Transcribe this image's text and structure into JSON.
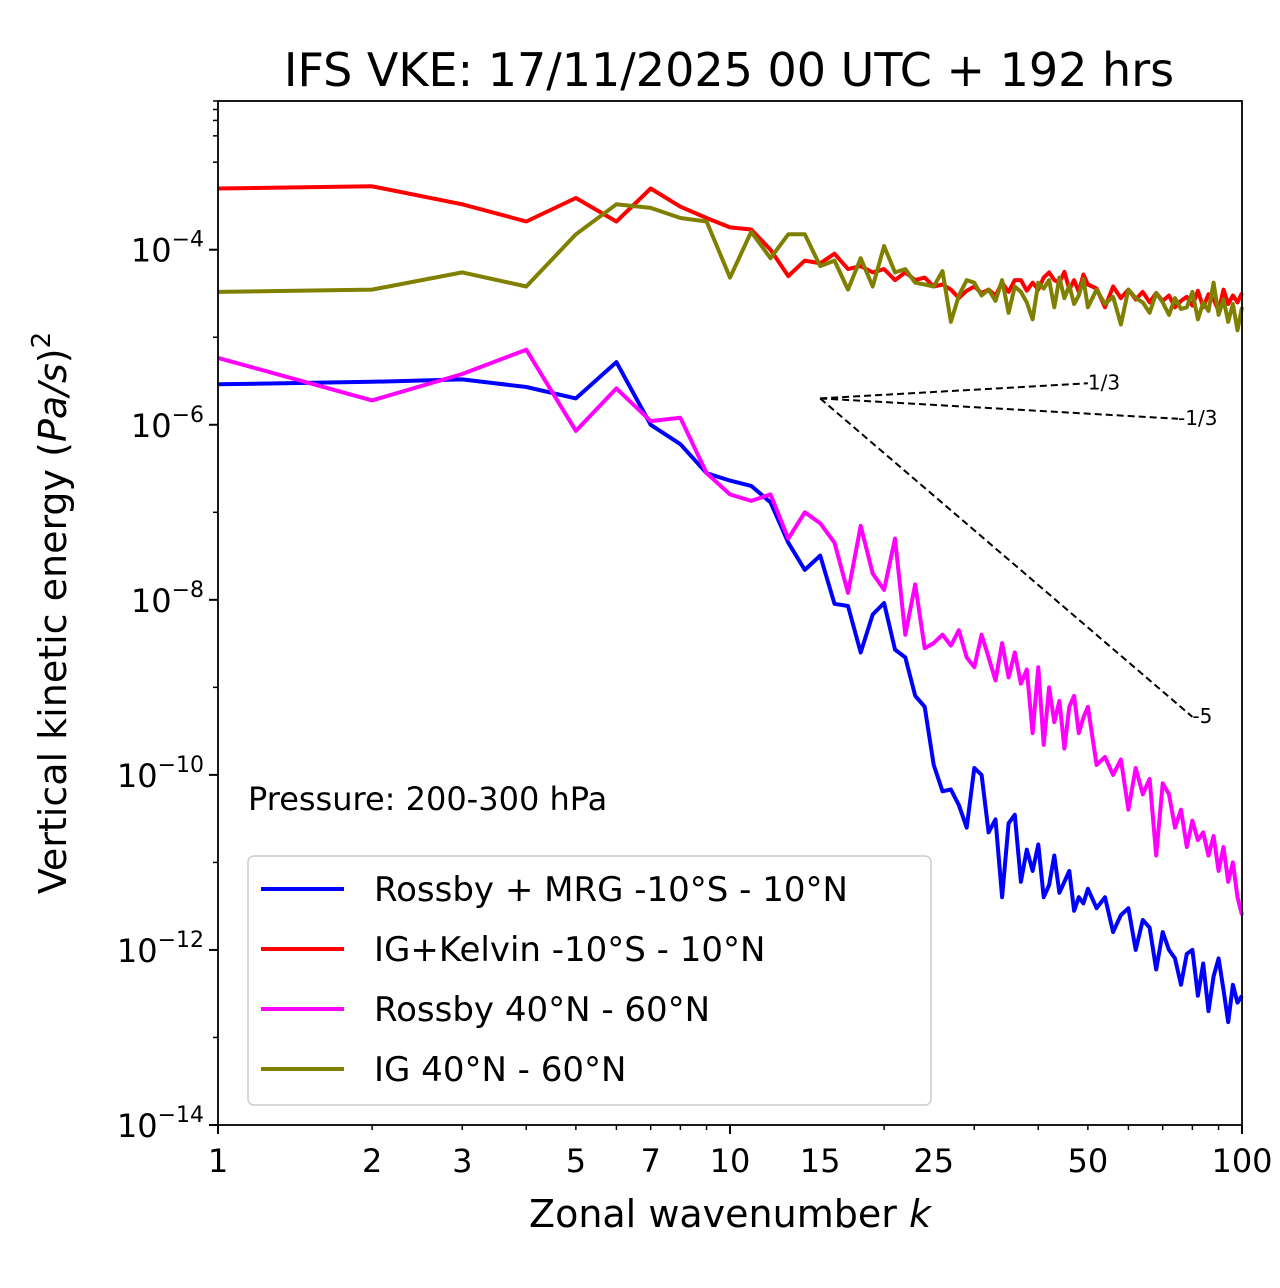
{
  "chart_data": {
    "type": "line",
    "title": "IFS VKE: 17/11/2025 00 UTC + 192 hrs",
    "xlabel_prefix": "Zonal wavenumber ",
    "xlabel_var": "k",
    "ylabel_prefix": "Vertical kinetic energy (",
    "ylabel_var": "Pa/s",
    "ylabel_suffix": ")",
    "ylabel_exponent": "2",
    "xscale": "log",
    "yscale": "log",
    "xlim": [
      1,
      100
    ],
    "ylim": [
      1e-14,
      0.005
    ],
    "x_ticks": [
      {
        "value": 1,
        "label": "1"
      },
      {
        "value": 2,
        "label": "2"
      },
      {
        "value": 3,
        "label": "3"
      },
      {
        "value": 5,
        "label": "5"
      },
      {
        "value": 7,
        "label": "7"
      },
      {
        "value": 10,
        "label": "10"
      },
      {
        "value": 15,
        "label": "15"
      },
      {
        "value": 25,
        "label": "25"
      },
      {
        "value": 50,
        "label": "50"
      },
      {
        "value": 100,
        "label": "100"
      }
    ],
    "y_ticks": [
      {
        "value": 1e-14,
        "base": "10",
        "exp": "−14"
      },
      {
        "value": 1e-12,
        "base": "10",
        "exp": "−12"
      },
      {
        "value": 1e-10,
        "base": "10",
        "exp": "−10"
      },
      {
        "value": 1e-08,
        "base": "10",
        "exp": "−8"
      },
      {
        "value": 1e-06,
        "base": "10",
        "exp": "−6"
      },
      {
        "value": 0.0001,
        "base": "10",
        "exp": "−4"
      }
    ],
    "annotation": "Pressure: 200-300 hPa",
    "legend_position": "lower-left",
    "reference_slopes": [
      {
        "label": "1/3",
        "x0": 15,
        "y0": 2e-06,
        "x1": 50,
        "y1": 2.98e-06
      },
      {
        "label": "-1/3",
        "x0": 15,
        "y0": 2e-06,
        "x1": 75,
        "y1": 1.17e-06
      },
      {
        "label": "-5",
        "x0": 15,
        "y0": 2e-06,
        "x1": 80,
        "y1": 4.6e-10
      }
    ],
    "series": [
      {
        "name": "Rossby + MRG -10°S - 10°N",
        "color": "#0000ff",
        "x": [
          1,
          2,
          3,
          4,
          5,
          6,
          7,
          8,
          9,
          10,
          11,
          12,
          13,
          14,
          15,
          16,
          17,
          18,
          19,
          20,
          21,
          22,
          23,
          24,
          25,
          26,
          27,
          28,
          29,
          30,
          31,
          32,
          33,
          34,
          35,
          36,
          37,
          38,
          39,
          40,
          41,
          42,
          43,
          44,
          45,
          46,
          47,
          48,
          49,
          50,
          52,
          54,
          56,
          58,
          60,
          62,
          64,
          66,
          68,
          70,
          72,
          74,
          76,
          78,
          80,
          82,
          84,
          86,
          88,
          90,
          92,
          94,
          96,
          98,
          100
        ],
        "y": [
          2.9e-06,
          3.1e-06,
          3.3e-06,
          2.7e-06,
          2e-06,
          5.2e-06,
          1e-06,
          6e-07,
          2.8e-07,
          2.3e-07,
          2e-07,
          1.3e-07,
          4.5e-08,
          2.2e-08,
          3.2e-08,
          9e-09,
          8.5e-09,
          2.5e-09,
          6.8e-09,
          9.2e-09,
          2.7e-09,
          2.2e-09,
          8e-10,
          6e-10,
          1.3e-10,
          6.5e-11,
          6.8e-11,
          4.5e-11,
          2.5e-11,
          1.2e-10,
          1e-10,
          2.2e-11,
          3.1e-11,
          4e-12,
          2.8e-11,
          3.5e-11,
          6e-12,
          1.4e-11,
          8e-12,
          1.6e-11,
          4e-12,
          5.5e-12,
          1.2e-11,
          4.5e-12,
          6e-12,
          8e-12,
          2.8e-12,
          4e-12,
          3.4e-12,
          5e-12,
          3e-12,
          4e-12,
          1.6e-12,
          2.5e-12,
          3e-12,
          1e-12,
          2.2e-12,
          1.8e-12,
          6e-13,
          1.6e-12,
          1e-12,
          8e-13,
          4e-13,
          9e-13,
          1e-12,
          3e-13,
          7e-13,
          2e-13,
          5e-13,
          8e-13,
          3.5e-13,
          1.5e-13,
          4e-13,
          2.5e-13,
          3e-13
        ]
      },
      {
        "name": "IG+Kelvin -10°S - 10°N",
        "color": "#ff0000",
        "x": [
          1,
          2,
          3,
          4,
          5,
          6,
          7,
          8,
          9,
          10,
          11,
          12,
          13,
          14,
          15,
          16,
          17,
          18,
          19,
          20,
          21,
          22,
          23,
          24,
          25,
          26,
          27,
          28,
          29,
          30,
          31,
          32,
          33,
          34,
          35,
          36,
          37,
          38,
          39,
          40,
          41,
          42,
          43,
          44,
          45,
          46,
          47,
          48,
          49,
          50,
          52,
          54,
          56,
          58,
          60,
          62,
          64,
          66,
          68,
          70,
          72,
          74,
          76,
          78,
          80,
          82,
          84,
          86,
          88,
          90,
          92,
          94,
          96,
          98,
          100
        ],
        "y": [
          0.0005,
          0.00053,
          0.00033,
          0.00021,
          0.00039,
          0.00021,
          0.0005,
          0.00031,
          0.00023,
          0.00018,
          0.00017,
          0.0001,
          5e-05,
          7.5e-05,
          7e-05,
          9e-05,
          6e-05,
          6.5e-05,
          5.5e-05,
          6e-05,
          4.5e-05,
          5.5e-05,
          4.5e-05,
          4.8e-05,
          3.8e-05,
          4e-05,
          3.5e-05,
          2.8e-05,
          3.4e-05,
          3.8e-05,
          3.2e-05,
          3.5e-05,
          3e-05,
          4.2e-05,
          3.3e-05,
          4.5e-05,
          4.5e-05,
          3.4e-05,
          4.2e-05,
          3.5e-05,
          4.8e-05,
          5.5e-05,
          4.5e-05,
          4.2e-05,
          5.6e-05,
          3.5e-05,
          4.5e-05,
          3.3e-05,
          5.2e-05,
          4e-05,
          3.6e-05,
          2.2e-05,
          3.8e-05,
          2.8e-05,
          3.5e-05,
          2.7e-05,
          3.3e-05,
          2.5e-05,
          3.2e-05,
          2.6e-05,
          3e-05,
          2.2e-05,
          2.6e-05,
          2.9e-05,
          2.3e-05,
          3.4e-05,
          2.2e-05,
          3.1e-05,
          2.7e-05,
          2e-05,
          3.5e-05,
          2.4e-05,
          3e-05,
          2.5e-05,
          3.2e-05
        ]
      },
      {
        "name": "Rossby 40°N - 60°N",
        "color": "#ff00ff",
        "x": [
          1,
          2,
          3,
          4,
          5,
          6,
          7,
          8,
          9,
          10,
          11,
          12,
          13,
          14,
          15,
          16,
          17,
          18,
          19,
          20,
          21,
          22,
          23,
          24,
          25,
          26,
          27,
          28,
          29,
          30,
          31,
          32,
          33,
          34,
          35,
          36,
          37,
          38,
          39,
          40,
          41,
          42,
          43,
          44,
          45,
          46,
          47,
          48,
          49,
          50,
          52,
          54,
          56,
          58,
          60,
          62,
          64,
          66,
          68,
          70,
          72,
          74,
          76,
          78,
          80,
          82,
          84,
          86,
          88,
          90,
          92,
          94,
          96,
          98,
          100
        ],
        "y": [
          5.8e-06,
          1.9e-06,
          3.8e-06,
          7.2e-06,
          8.5e-07,
          2.6e-06,
          1.1e-06,
          1.2e-06,
          2.8e-07,
          1.6e-07,
          1.35e-07,
          1.6e-07,
          5e-08,
          1e-07,
          7.5e-08,
          4.5e-08,
          1.2e-08,
          7e-08,
          2e-08,
          1.3e-08,
          5e-08,
          4e-09,
          1.5e-08,
          2.8e-09,
          3.2e-09,
          4e-09,
          3e-09,
          4.5e-09,
          2.2e-09,
          1.7e-09,
          4e-09,
          2.2e-09,
          1.2e-09,
          3.2e-09,
          1.3e-09,
          2.5e-09,
          1.1e-09,
          1.6e-09,
          3e-10,
          1.7e-09,
          2.2e-10,
          1e-09,
          4e-10,
          7e-10,
          2e-10,
          6e-10,
          8e-10,
          3e-10,
          4.5e-10,
          6e-10,
          1.3e-10,
          1.6e-10,
          1e-10,
          1.5e-10,
          4e-11,
          1.2e-10,
          6e-11,
          9e-11,
          1.2e-11,
          8e-11,
          6e-11,
          2.5e-11,
          4e-11,
          1.5e-11,
          3e-11,
          1.8e-11,
          2.2e-11,
          1.2e-11,
          2e-11,
          8e-12,
          1.5e-11,
          6e-12,
          1e-11,
          4e-12,
          2.5e-12
        ]
      },
      {
        "name": "IG 40°N - 60°N",
        "color": "#808000",
        "x": [
          1,
          2,
          3,
          4,
          5,
          6,
          7,
          8,
          9,
          10,
          11,
          12,
          13,
          14,
          15,
          16,
          17,
          18,
          19,
          20,
          21,
          22,
          23,
          24,
          25,
          26,
          27,
          28,
          29,
          30,
          31,
          32,
          33,
          34,
          35,
          36,
          37,
          38,
          39,
          40,
          41,
          42,
          43,
          44,
          45,
          46,
          47,
          48,
          49,
          50,
          52,
          54,
          56,
          58,
          60,
          62,
          64,
          66,
          68,
          70,
          72,
          74,
          76,
          78,
          80,
          82,
          84,
          86,
          88,
          90,
          92,
          94,
          96,
          98,
          100
        ],
        "y": [
          3.3e-05,
          3.5e-05,
          5.5e-05,
          3.8e-05,
          0.00015,
          0.00033,
          0.0003,
          0.00023,
          0.00021,
          4.8e-05,
          0.00016,
          8e-05,
          0.00015,
          0.00015,
          6.5e-05,
          7.5e-05,
          3.5e-05,
          8e-05,
          3.8e-05,
          0.00011,
          5.5e-05,
          6e-05,
          4.2e-05,
          4e-05,
          3.8e-05,
          5.7e-05,
          1.5e-05,
          3e-05,
          4.5e-05,
          4.2e-05,
          3e-05,
          3.5e-05,
          2.6e-05,
          4.5e-05,
          1.9e-05,
          3.8e-05,
          3.3e-05,
          2.5e-05,
          1.6e-05,
          4.2e-05,
          3.6e-05,
          4.5e-05,
          2.2e-05,
          4.8e-05,
          2.8e-05,
          3.9e-05,
          2.4e-05,
          3e-05,
          4.6e-05,
          2.2e-05,
          3.5e-05,
          2.4e-05,
          2.9e-05,
          1.4e-05,
          3.5e-05,
          2.8e-05,
          2.5e-05,
          1.9e-05,
          3.2e-05,
          2.5e-05,
          1.8e-05,
          2.8e-05,
          2.1e-05,
          2.2e-05,
          3.3e-05,
          1.6e-05,
          2.5e-05,
          2e-05,
          4.2e-05,
          1.8e-05,
          2.7e-05,
          1.5e-05,
          2.4e-05,
          1.2e-05,
          2.2e-05
        ]
      }
    ]
  }
}
